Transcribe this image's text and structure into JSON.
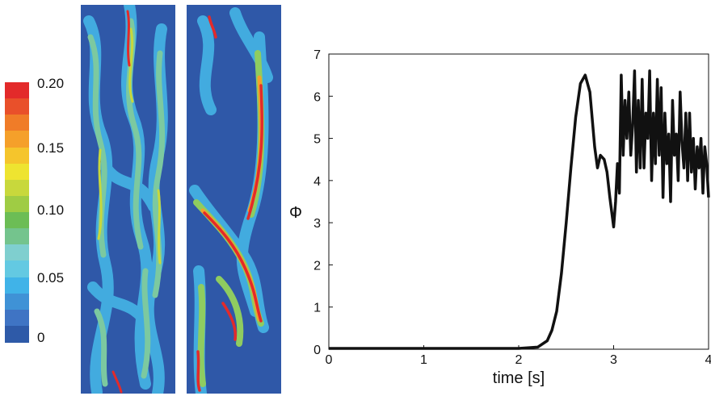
{
  "colorbar": {
    "colors": [
      "#2e5aa8",
      "#3f74c4",
      "#3f92d6",
      "#40b3e8",
      "#63c9e2",
      "#7fcfcf",
      "#74c48d",
      "#6cbd55",
      "#9fcc44",
      "#c8d83c",
      "#eee430",
      "#f5c52c",
      "#f5a02a",
      "#f07c28",
      "#e9502a",
      "#e32a2a"
    ],
    "labels": [
      "0.20",
      "0.15",
      "0.10",
      "0.05",
      "0"
    ]
  },
  "panels": [
    {
      "name": "field-left"
    },
    {
      "name": "field-right"
    }
  ],
  "chart_data": {
    "type": "line",
    "xlabel": "time [s]",
    "ylabel": "Φ",
    "xlim": [
      0,
      4
    ],
    "ylim": [
      0,
      7
    ],
    "xticks": [
      "0",
      "1",
      "2",
      "3",
      "4"
    ],
    "yticks": [
      "0",
      "1",
      "2",
      "3",
      "4",
      "5",
      "6",
      "7"
    ],
    "line_color": "#111111",
    "series": [
      {
        "x": [
          0,
          0.5,
          1.0,
          1.5,
          2.0,
          2.2,
          2.3,
          2.35,
          2.4,
          2.45,
          2.5,
          2.55,
          2.6,
          2.65,
          2.7,
          2.75,
          2.8,
          2.83,
          2.86,
          2.9,
          2.93,
          2.96,
          3.0,
          3.02,
          3.04,
          3.06,
          3.08,
          3.1,
          3.12,
          3.14,
          3.16,
          3.18,
          3.2,
          3.22,
          3.24,
          3.26,
          3.28,
          3.3,
          3.32,
          3.34,
          3.36,
          3.38,
          3.4,
          3.42,
          3.44,
          3.46,
          3.48,
          3.5,
          3.52,
          3.54,
          3.56,
          3.58,
          3.6,
          3.62,
          3.64,
          3.66,
          3.68,
          3.7,
          3.72,
          3.74,
          3.76,
          3.78,
          3.8,
          3.82,
          3.84,
          3.86,
          3.88,
          3.9,
          3.92,
          3.94,
          3.96,
          3.98,
          4.0
        ],
        "y": [
          0.02,
          0.02,
          0.02,
          0.02,
          0.02,
          0.05,
          0.2,
          0.45,
          0.9,
          1.8,
          3.0,
          4.3,
          5.5,
          6.3,
          6.5,
          6.1,
          4.8,
          4.3,
          4.6,
          4.5,
          4.2,
          3.6,
          2.9,
          3.5,
          4.4,
          3.7,
          6.5,
          4.6,
          5.9,
          5.0,
          6.1,
          4.6,
          5.3,
          6.6,
          4.2,
          5.9,
          4.3,
          6.4,
          4.3,
          5.6,
          5.0,
          6.6,
          4.0,
          5.6,
          4.4,
          6.4,
          4.6,
          6.2,
          3.6,
          5.6,
          4.4,
          5.1,
          3.5,
          5.9,
          4.6,
          5.1,
          4.0,
          6.1,
          4.9,
          4.3,
          5.6,
          4.0,
          5.6,
          4.2,
          5.0,
          3.8,
          4.8,
          4.3,
          5.0,
          3.7,
          4.8,
          4.4,
          3.6
        ]
      }
    ]
  }
}
